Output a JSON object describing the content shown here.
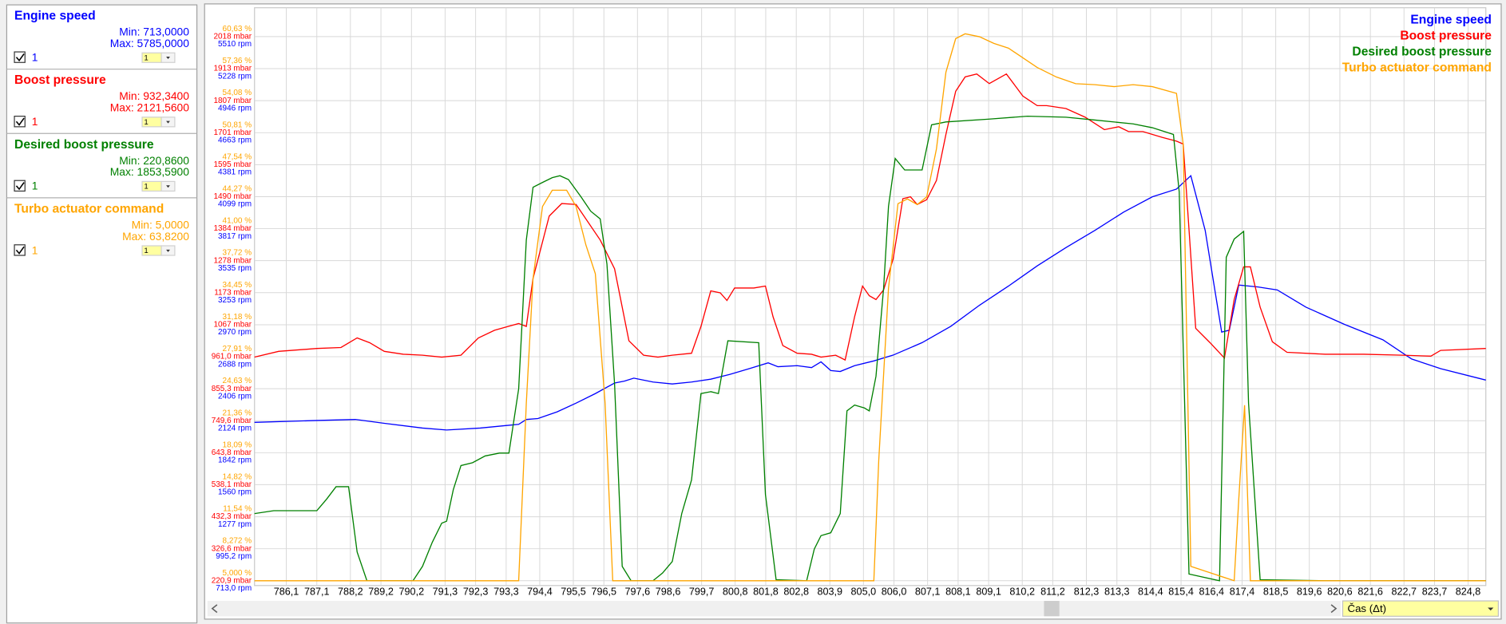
{
  "chart_data": {
    "type": "line",
    "grid": true,
    "legend": "upper right",
    "x_label": "Čas (Δt)",
    "xlim": [
      785.06,
      825.38
    ],
    "xticks": [
      {
        "value": 786.1,
        "label": "786,1"
      },
      {
        "value": 787.1,
        "label": "787,1"
      },
      {
        "value": 788.2,
        "label": "788,2"
      },
      {
        "value": 789.2,
        "label": "789,2"
      },
      {
        "value": 790.2,
        "label": "790,2"
      },
      {
        "value": 791.3,
        "label": "791,3"
      },
      {
        "value": 792.3,
        "label": "792,3"
      },
      {
        "value": 793.3,
        "label": "793,3"
      },
      {
        "value": 794.4,
        "label": "794,4"
      },
      {
        "value": 795.5,
        "label": "795,5"
      },
      {
        "value": 796.5,
        "label": "796,5"
      },
      {
        "value": 797.6,
        "label": "797,6"
      },
      {
        "value": 798.6,
        "label": "798,6"
      },
      {
        "value": 799.7,
        "label": "799,7"
      },
      {
        "value": 800.8,
        "label": "800,8"
      },
      {
        "value": 801.8,
        "label": "801,8"
      },
      {
        "value": 802.8,
        "label": "802,8"
      },
      {
        "value": 803.9,
        "label": "803,9"
      },
      {
        "value": 805.0,
        "label": "805,0"
      },
      {
        "value": 806.0,
        "label": "806,0"
      },
      {
        "value": 807.1,
        "label": "807,1"
      },
      {
        "value": 808.1,
        "label": "808,1"
      },
      {
        "value": 809.1,
        "label": "809,1"
      },
      {
        "value": 810.2,
        "label": "810,2"
      },
      {
        "value": 811.2,
        "label": "811,2"
      },
      {
        "value": 812.3,
        "label": "812,3"
      },
      {
        "value": 813.3,
        "label": "813,3"
      },
      {
        "value": 814.4,
        "label": "814,4"
      },
      {
        "value": 815.4,
        "label": "815,4"
      },
      {
        "value": 816.4,
        "label": "816,4"
      },
      {
        "value": 817.4,
        "label": "817,4"
      },
      {
        "value": 818.5,
        "label": "818,5"
      },
      {
        "value": 819.6,
        "label": "819,6"
      },
      {
        "value": 820.6,
        "label": "820,6"
      },
      {
        "value": 821.6,
        "label": "821,6"
      },
      {
        "value": 822.7,
        "label": "822,7"
      },
      {
        "value": 823.7,
        "label": "823,7"
      },
      {
        "value": 824.8,
        "label": "824,8"
      }
    ],
    "ylim": [
      713,
      5785
    ],
    "yticks": [
      {
        "value": 713,
        "label": "713,0 rpm"
      },
      {
        "value": 995.2,
        "label": "995,2 rpm"
      },
      {
        "value": 1277,
        "label": "1277 rpm"
      },
      {
        "value": 1560,
        "label": "1560 rpm"
      },
      {
        "value": 1842,
        "label": "1842 rpm"
      },
      {
        "value": 2124,
        "label": "2124 rpm"
      },
      {
        "value": 2406,
        "label": "2406 rpm"
      },
      {
        "value": 2688,
        "label": "2688 rpm"
      },
      {
        "value": 2970,
        "label": "2970 rpm"
      },
      {
        "value": 3253,
        "label": "3253 rpm"
      },
      {
        "value": 3535,
        "label": "3535 rpm"
      },
      {
        "value": 3817,
        "label": "3817 rpm"
      },
      {
        "value": 4099,
        "label": "4099 rpm"
      },
      {
        "value": 4381,
        "label": "4381 rpm"
      },
      {
        "value": 4663,
        "label": "4663 rpm"
      },
      {
        "value": 4946,
        "label": "4946 rpm"
      },
      {
        "value": 5228,
        "label": "5228 rpm"
      },
      {
        "value": 5510,
        "label": "5510 rpm"
      }
    ],
    "y2lim": [
      220.86,
      2121.56
    ],
    "y2ticks": [
      {
        "value": 220.9,
        "label": "220,9 mbar"
      },
      {
        "value": 326.6,
        "label": "326,6 mbar"
      },
      {
        "value": 432.3,
        "label": "432,3 mbar"
      },
      {
        "value": 538.1,
        "label": "538,1 mbar"
      },
      {
        "value": 643.8,
        "label": "643,8 mbar"
      },
      {
        "value": 749.6,
        "label": "749,6 mbar"
      },
      {
        "value": 855.3,
        "label": "855,3 mbar"
      },
      {
        "value": 961.0,
        "label": "961,0 mbar"
      },
      {
        "value": 1067,
        "label": "1067 mbar"
      },
      {
        "value": 1173,
        "label": "1173 mbar"
      },
      {
        "value": 1278,
        "label": "1278 mbar"
      },
      {
        "value": 1384,
        "label": "1384 mbar"
      },
      {
        "value": 1490,
        "label": "1490 mbar"
      },
      {
        "value": 1595,
        "label": "1595 mbar"
      },
      {
        "value": 1701,
        "label": "1701 mbar"
      },
      {
        "value": 1807,
        "label": "1807 mbar"
      },
      {
        "value": 1913,
        "label": "1913 mbar"
      },
      {
        "value": 2018,
        "label": "2018 mbar"
      }
    ],
    "y3lim": [
      5,
      63.82
    ],
    "y3ticks": [
      {
        "value": 5.0,
        "label": "5,000 %"
      },
      {
        "value": 8.272,
        "label": "8,272 %"
      },
      {
        "value": 11.54,
        "label": "11,54 %"
      },
      {
        "value": 14.82,
        "label": "14,82 %"
      },
      {
        "value": 18.09,
        "label": "18,09 %"
      },
      {
        "value": 21.36,
        "label": "21,36 %"
      },
      {
        "value": 24.63,
        "label": "24,63 %"
      },
      {
        "value": 27.91,
        "label": "27,91 %"
      },
      {
        "value": 31.18,
        "label": "31,18 %"
      },
      {
        "value": 34.45,
        "label": "34,45 %"
      },
      {
        "value": 37.72,
        "label": "37,72 %"
      },
      {
        "value": 41.0,
        "label": "41,00 %"
      },
      {
        "value": 44.27,
        "label": "44,27 %"
      },
      {
        "value": 47.54,
        "label": "47,54 %"
      },
      {
        "value": 50.81,
        "label": "50,81 %"
      },
      {
        "value": 54.08,
        "label": "54,08 %"
      },
      {
        "value": 57.36,
        "label": "57,36 %"
      },
      {
        "value": 60.63,
        "label": "60,63 %"
      }
    ],
    "series": [
      {
        "name": "Engine speed",
        "color": "#0000ff",
        "axis": "y",
        "x": [
          785.06,
          787.1,
          788.36,
          789.31,
          790.56,
          791.35,
          792.45,
          793.71,
          793.96,
          794.34,
          794.97,
          795.59,
          796.22,
          796.85,
          797.17,
          797.48,
          798.11,
          798.74,
          799.37,
          800.0,
          800.63,
          801.26,
          801.88,
          802.2,
          802.83,
          803.3,
          803.61,
          803.93,
          804.24,
          804.71,
          805.34,
          805.97,
          806.92,
          807.86,
          808.8,
          809.75,
          810.69,
          811.63,
          812.58,
          813.52,
          814.46,
          815.25,
          815.72,
          816.19,
          816.73,
          816.98,
          817.29,
          817.92,
          818.55,
          819.49,
          820.75,
          822.01,
          822.95,
          823.9,
          825.38
        ],
        "values": [
          2109,
          2126,
          2135,
          2101,
          2059,
          2042,
          2059,
          2092,
          2135,
          2143,
          2202,
          2279,
          2363,
          2456,
          2473,
          2499,
          2465,
          2448,
          2465,
          2490,
          2533,
          2583,
          2634,
          2600,
          2609,
          2592,
          2643,
          2566,
          2558,
          2609,
          2651,
          2702,
          2812,
          2956,
          3142,
          3311,
          3489,
          3650,
          3802,
          3963,
          4098,
          4166,
          4284,
          3802,
          2905,
          2922,
          3320,
          3303,
          3277,
          3125,
          2973,
          2837,
          2668,
          2583,
          2482
        ]
      },
      {
        "name": "Boost pressure",
        "color": "#ff0000",
        "axis": "y2",
        "x": [
          785.06,
          785.85,
          787.1,
          787.89,
          788.42,
          788.83,
          789.31,
          789.93,
          790.56,
          791.19,
          791.82,
          792.39,
          792.92,
          793.71,
          793.96,
          794.18,
          794.71,
          795.12,
          795.59,
          796.38,
          796.85,
          797.32,
          797.8,
          798.27,
          798.74,
          799.37,
          799.68,
          800.0,
          800.31,
          800.53,
          800.78,
          801.41,
          801.79,
          802.04,
          802.36,
          802.83,
          803.3,
          803.61,
          804.09,
          804.4,
          804.71,
          804.97,
          805.19,
          805.41,
          805.66,
          805.97,
          806.29,
          806.54,
          806.76,
          807.07,
          807.39,
          807.7,
          808.02,
          808.33,
          808.71,
          809.12,
          809.68,
          810.22,
          810.69,
          811.0,
          811.63,
          812.26,
          812.89,
          813.36,
          813.68,
          814.15,
          814.78,
          815.25,
          815.47,
          815.88,
          816.35,
          816.82,
          817.14,
          817.45,
          817.67,
          817.99,
          818.39,
          818.87,
          820.12,
          821.38,
          822.64,
          823.58,
          823.9,
          825.38
        ],
        "values": [
          959.7,
          978.7,
          988.2,
          991.4,
          1023.1,
          1007.3,
          978.7,
          969.2,
          966.0,
          959.7,
          966.0,
          1023.1,
          1048.5,
          1070.7,
          1061.2,
          1219.7,
          1425.8,
          1467.0,
          1464.0,
          1346.6,
          1251.4,
          1013.6,
          966.0,
          959.7,
          966.0,
          972.4,
          1061.2,
          1178.5,
          1172.2,
          1146.8,
          1188.0,
          1188.0,
          1194.4,
          1092.9,
          997.8,
          972.4,
          969.2,
          959.7,
          966.0,
          950.2,
          1092.9,
          1194.4,
          1162.6,
          1150.0,
          1181.7,
          1283.1,
          1483.0,
          1489.3,
          1464.0,
          1479.7,
          1543.2,
          1695.4,
          1838.1,
          1885.6,
          1895.1,
          1863.4,
          1895.1,
          1822.2,
          1790.5,
          1790.5,
          1781.0,
          1752.4,
          1711.2,
          1720.7,
          1704.9,
          1704.9,
          1685.9,
          1673.2,
          1663.7,
          1054.8,
          1007.3,
          956.5,
          1150.0,
          1257.8,
          1257.8,
          1124.6,
          1010.4,
          975.6,
          969.2,
          969.2,
          966.0,
          962.9,
          981.9,
          988.2
        ]
      },
      {
        "name": "Desired boost pressure",
        "color": "#008000",
        "axis": "y2",
        "x": [
          785.06,
          785.69,
          787.1,
          787.42,
          787.73,
          788.14,
          788.42,
          788.74,
          790.25,
          790.56,
          790.88,
          791.19,
          791.35,
          791.57,
          791.82,
          792.2,
          792.61,
          793.08,
          793.39,
          793.71,
          793.96,
          794.18,
          794.49,
          794.81,
          795.06,
          795.34,
          795.75,
          796.07,
          796.38,
          796.6,
          796.85,
          797.1,
          797.39,
          798.11,
          798.42,
          798.74,
          799.05,
          799.37,
          799.68,
          800.0,
          800.25,
          800.56,
          801.57,
          801.79,
          802.14,
          803.14,
          803.39,
          803.61,
          803.93,
          804.24,
          804.46,
          804.71,
          805.03,
          805.19,
          805.41,
          805.66,
          805.82,
          806.04,
          806.35,
          806.92,
          807.23,
          807.7,
          809.12,
          810.37,
          811.63,
          812.58,
          813.83,
          814.46,
          815.15,
          815.34,
          815.66,
          816.66,
          816.88,
          817.14,
          817.45,
          817.61,
          817.99,
          820.12,
          825.38
        ],
        "values": [
          442.8,
          452.3,
          452.3,
          490.4,
          531.6,
          531.6,
          316.0,
          220.9,
          220.9,
          268.4,
          347.7,
          411.1,
          417.5,
          522.1,
          601.4,
          610.9,
          633.1,
          642.6,
          642.6,
          855.1,
          1346.6,
          1520.9,
          1536.8,
          1552.7,
          1559.0,
          1546.3,
          1489.3,
          1441.7,
          1416.3,
          1267.3,
          870.9,
          268.4,
          220.9,
          220.9,
          246.2,
          284.3,
          442.8,
          553.8,
          839.2,
          845.5,
          839.2,
          1013.6,
          1007.3,
          506.2,
          224.0,
          220.9,
          325.5,
          369.9,
          379.4,
          442.8,
          782.1,
          801.2,
          791.6,
          782.1,
          896.3,
          1188.0,
          1457.6,
          1616.1,
          1578.0,
          1578.0,
          1727.1,
          1736.6,
          1746.1,
          1755.6,
          1752.4,
          1742.9,
          1730.3,
          1717.6,
          1695.4,
          1505.1,
          243.1,
          220.9,
          1289.5,
          1349.7,
          1375.1,
          807.5,
          224.0,
          220.9,
          220.9
        ]
      },
      {
        "name": "Turbo actuator command",
        "color": "#ffa500",
        "axis": "y3",
        "x": [
          785.06,
          793.71,
          793.96,
          794.18,
          794.49,
          794.81,
          795.28,
          795.59,
          795.91,
          796.22,
          796.54,
          796.79,
          805.34,
          805.5,
          805.82,
          806.13,
          806.44,
          806.76,
          807.07,
          807.39,
          807.7,
          808.02,
          808.33,
          808.8,
          809.27,
          809.75,
          810.69,
          811.32,
          811.95,
          812.58,
          813.21,
          813.83,
          814.46,
          815.25,
          815.47,
          815.72,
          817.14,
          817.29,
          817.48,
          817.67,
          825.38
        ],
        "values": [
          5,
          5,
          23.15,
          35.9,
          43.26,
          44.93,
          44.93,
          43.26,
          39.34,
          36.39,
          23.15,
          5,
          5,
          17.26,
          34.92,
          43.55,
          44.04,
          43.46,
          44.24,
          49.15,
          56.99,
          60.43,
          60.92,
          60.62,
          59.94,
          59.45,
          57.48,
          56.5,
          55.82,
          55.72,
          55.52,
          55.72,
          55.52,
          54.83,
          49.64,
          6.47,
          5,
          13.34,
          22.95,
          5,
          5
        ]
      }
    ]
  },
  "side_panel": {
    "items": [
      {
        "min_label": "Min: 713,0000",
        "max_label": "Max: 5785,0000",
        "check_label": "1",
        "select_label": "1"
      },
      {
        "min_label": "Min: 932,3400",
        "max_label": "Max: 2121,5600",
        "check_label": "1",
        "select_label": "1"
      },
      {
        "min_label": "Min: 220,8600",
        "max_label": "Max: 1853,5900",
        "check_label": "1",
        "select_label": "1"
      },
      {
        "min_label": "Min: 5,0000",
        "max_label": "Max: 63,8200",
        "check_label": "1",
        "select_label": "1"
      }
    ]
  }
}
